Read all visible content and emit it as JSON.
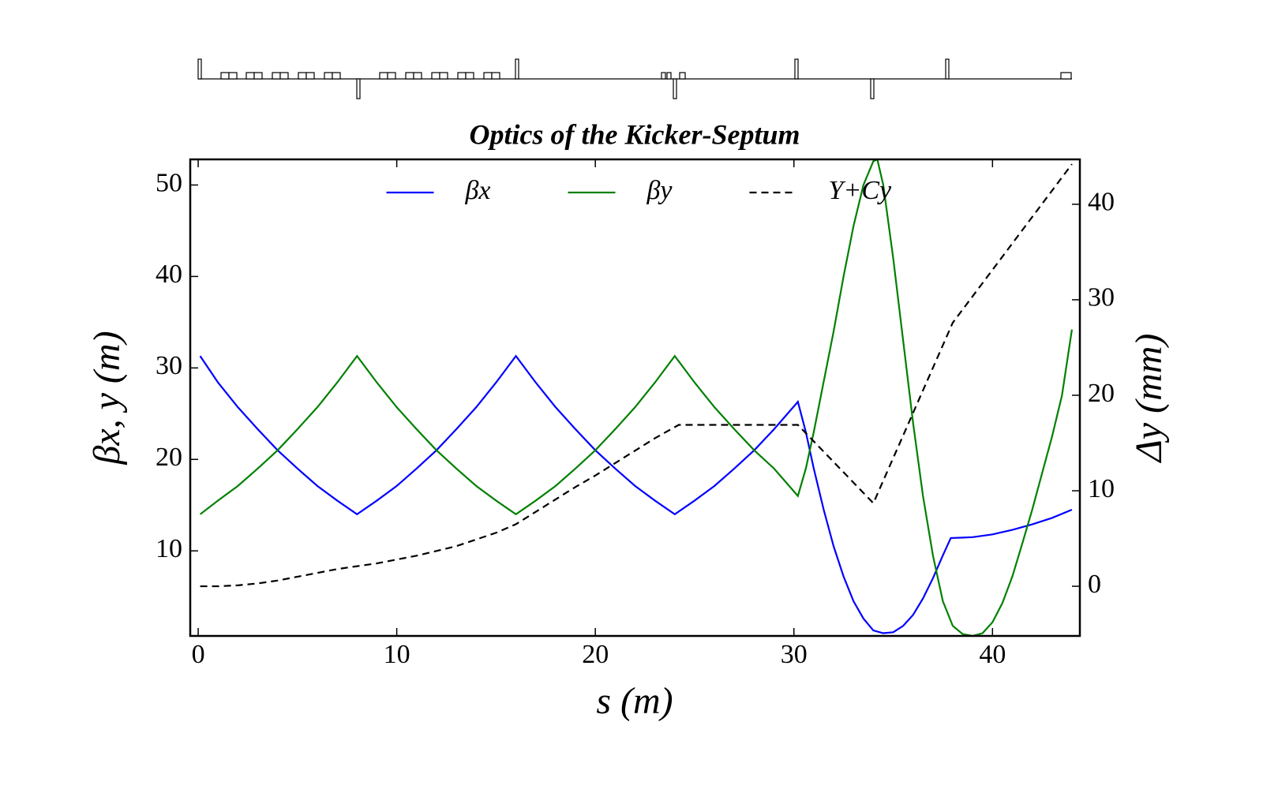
{
  "chart_data": {
    "type": "line",
    "title": "Optics of the Kicker-Septum",
    "xlabel": "s (m)",
    "ylabel": "βx, y (m)",
    "y2label": "Δy (mm)",
    "xlim": [
      -0.4,
      44.4
    ],
    "xticks": [
      0,
      10,
      20,
      30,
      40
    ],
    "ylim": [
      0.7,
      52.8
    ],
    "yticks": [
      10,
      20,
      30,
      40,
      50
    ],
    "y2lim": [
      -5.2,
      44.7
    ],
    "y2ticks": [
      0,
      10,
      20,
      30,
      40
    ],
    "legend": "upper center",
    "series": [
      {
        "name": "βx",
        "color": "#0000ff",
        "style": "solid",
        "x": [
          0.1,
          1,
          2,
          3,
          4,
          5,
          6,
          7,
          8,
          9,
          10,
          11,
          12,
          13,
          14,
          15,
          16,
          17,
          18,
          19,
          20,
          21,
          22,
          23,
          24,
          25,
          26,
          27,
          28,
          29,
          30.2,
          30.6,
          31,
          31.5,
          32,
          32.5,
          33,
          33.5,
          34,
          34.5,
          35,
          35.5,
          36,
          36.5,
          37,
          37.5,
          37.9,
          38.5,
          39,
          40,
          41,
          42,
          43,
          44
        ],
        "values": [
          31.3,
          28.4,
          25.7,
          23.3,
          21.0,
          19.0,
          17.1,
          15.5,
          14.0,
          15.5,
          17.1,
          19.0,
          21.0,
          23.3,
          25.7,
          28.4,
          31.3,
          28.4,
          25.7,
          23.3,
          21.0,
          19.0,
          17.1,
          15.5,
          14.0,
          15.5,
          17.1,
          19.0,
          21.0,
          23.3,
          26.3,
          23,
          19,
          14.5,
          10.5,
          7.2,
          4.5,
          2.6,
          1.3,
          1.0,
          1.1,
          1.8,
          3.0,
          4.8,
          7.0,
          9.5,
          11.4,
          11.45,
          11.5,
          11.8,
          12.3,
          12.9,
          13.6,
          14.5
        ]
      },
      {
        "name": "βy",
        "color": "#008000",
        "style": "solid",
        "x": [
          0.1,
          1,
          2,
          3,
          4,
          5,
          6,
          7,
          8,
          9,
          10,
          11,
          12,
          13,
          14,
          15,
          16,
          17,
          18,
          19,
          20,
          21,
          22,
          23,
          24,
          25,
          26,
          27,
          28,
          29,
          30.2,
          30.6,
          31,
          31.5,
          32,
          32.5,
          33,
          33.5,
          34,
          34.2,
          34.5,
          35,
          35.5,
          36,
          36.5,
          37,
          37.5,
          38,
          38.5,
          39,
          39.5,
          40,
          40.5,
          41,
          41.5,
          42,
          42.5,
          43,
          43.5,
          44
        ],
        "values": [
          14.0,
          15.5,
          17.1,
          19.0,
          21.0,
          23.3,
          25.7,
          28.4,
          31.3,
          28.4,
          25.7,
          23.3,
          21.0,
          19.0,
          17.1,
          15.5,
          14.0,
          15.5,
          17.1,
          19.0,
          21.0,
          23.3,
          25.7,
          28.4,
          31.3,
          28.4,
          25.7,
          23.3,
          21.0,
          19.0,
          16.0,
          19,
          23,
          28.5,
          34,
          40,
          45.5,
          50,
          52.6,
          52.8,
          50,
          42,
          33,
          24,
          16,
          9.5,
          4.5,
          1.8,
          0.9,
          0.7,
          1.0,
          2.2,
          4.3,
          7.2,
          10.8,
          14.5,
          18.5,
          22.5,
          27,
          34.2
        ]
      },
      {
        "name": "Y+Cy",
        "color": "#000000",
        "style": "dashed",
        "axis": "y2",
        "x": [
          0.1,
          1,
          2,
          3,
          4,
          5,
          6,
          7,
          8,
          9,
          10,
          11,
          12,
          13,
          14,
          15,
          16,
          17,
          18,
          19,
          20,
          21,
          22,
          23,
          24.2,
          30.2,
          34,
          38,
          44
        ],
        "values": [
          0,
          0,
          0.1,
          0.3,
          0.6,
          1.0,
          1.4,
          1.8,
          2.1,
          2.4,
          2.8,
          3.2,
          3.7,
          4.2,
          4.9,
          5.6,
          6.5,
          7.8,
          9.1,
          10.4,
          11.6,
          12.9,
          14.2,
          15.5,
          16.9,
          16.9,
          8.7,
          27.6,
          44.2
        ]
      }
    ]
  }
}
